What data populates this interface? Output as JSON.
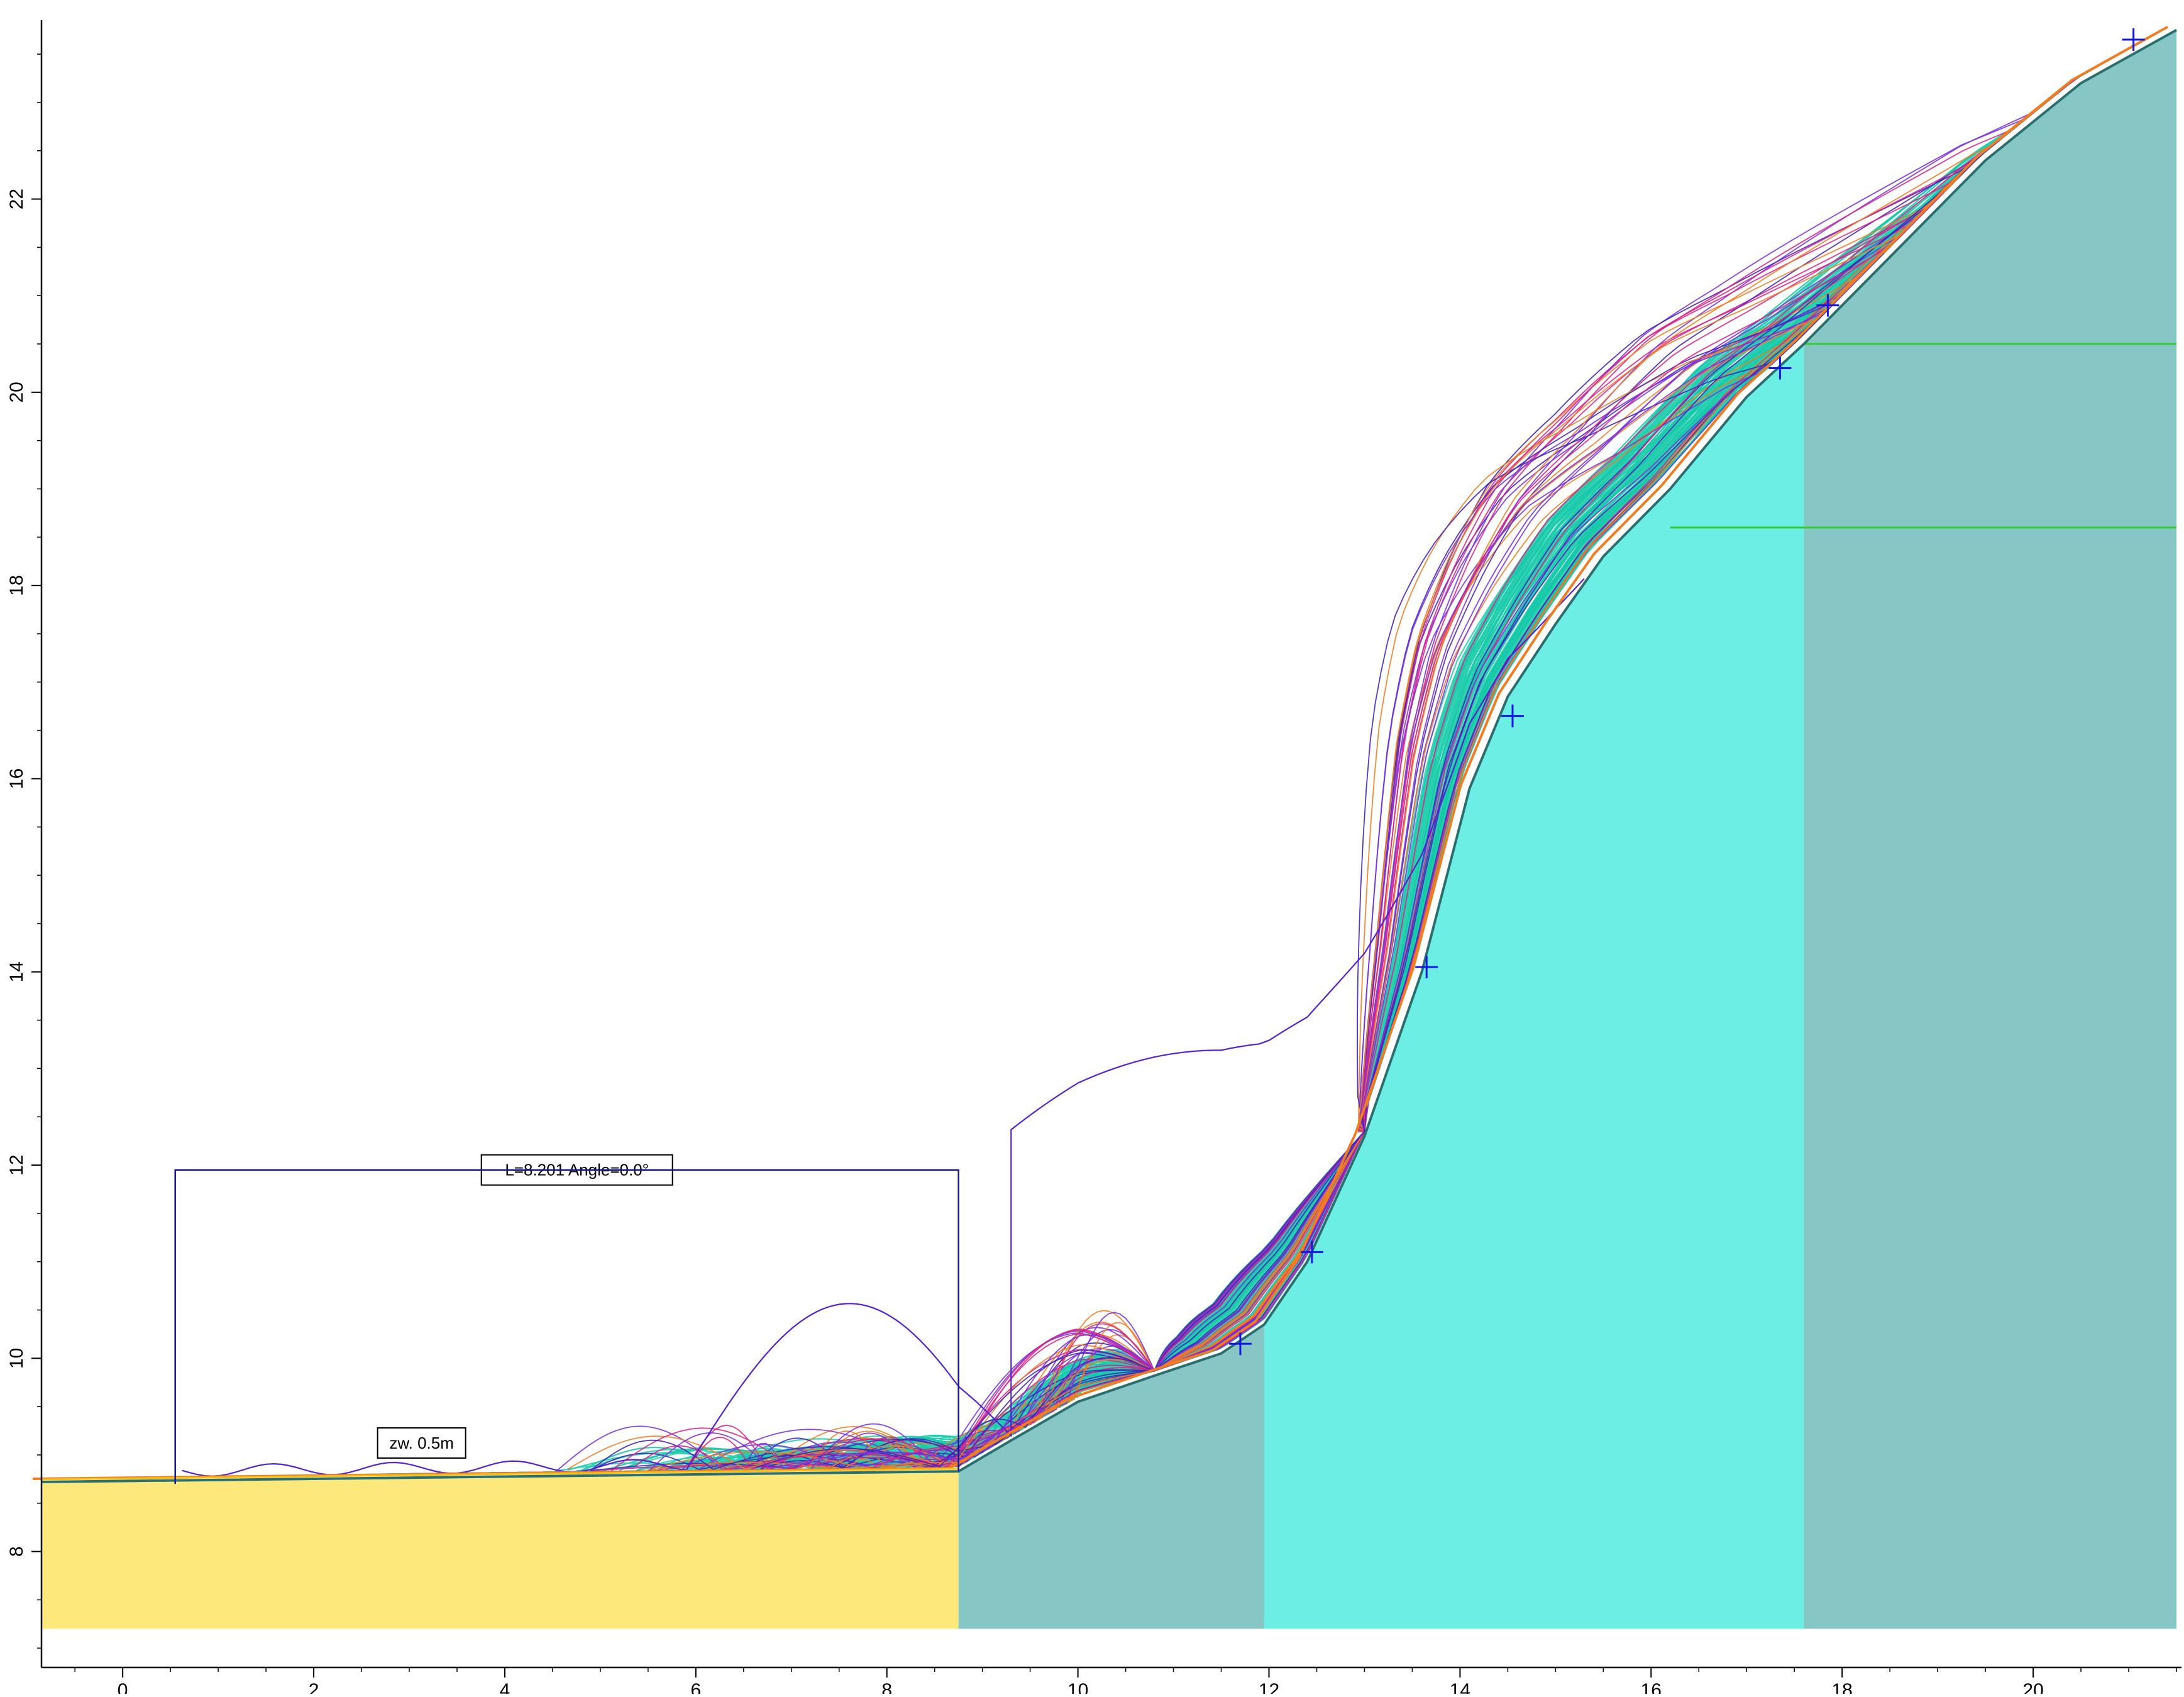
{
  "chart_data": {
    "type": "area",
    "title": "",
    "xlabel": "",
    "ylabel": "",
    "xlim": [
      -0.85,
      21.5
    ],
    "ylim": [
      6.8,
      23.8
    ],
    "x_ticks": [
      "0",
      "2",
      "4",
      "6",
      "8",
      "10",
      "12",
      "14",
      "16",
      "18",
      "20"
    ],
    "y_ticks": [
      "8",
      "10",
      "12",
      "14",
      "16",
      "18",
      "20",
      "22"
    ],
    "regions": [
      {
        "name": "",
        "color": "#fde97b",
        "x_range": [
          -0.85,
          8.75
        ],
        "y_bottom": 7.2
      },
      {
        "name": "",
        "color": "#86c6c4",
        "x_range": [
          8.75,
          11.95
        ],
        "y_bottom": 7.2
      },
      {
        "name": "",
        "color": "#6ceee5",
        "x_range": [
          11.95,
          17.6
        ],
        "y_bottom": 7.2
      },
      {
        "name": "",
        "color": "#86c6c4",
        "x_range": [
          17.6,
          21.5
        ],
        "y_bottom": 7.2
      }
    ],
    "slope_profile": [
      [
        -0.85,
        8.72
      ],
      [
        8.75,
        8.83
      ],
      [
        9.3,
        9.15
      ],
      [
        10.0,
        9.55
      ],
      [
        10.8,
        9.82
      ],
      [
        11.5,
        10.05
      ],
      [
        11.95,
        10.35
      ],
      [
        12.4,
        11.0
      ],
      [
        13.0,
        12.3
      ],
      [
        13.6,
        14.0
      ],
      [
        14.1,
        15.9
      ],
      [
        14.5,
        16.85
      ],
      [
        15.0,
        17.6
      ],
      [
        15.5,
        18.3
      ],
      [
        16.2,
        19.0
      ],
      [
        17.0,
        19.95
      ],
      [
        17.6,
        20.5
      ],
      [
        18.5,
        21.4
      ],
      [
        19.5,
        22.4
      ],
      [
        20.5,
        23.2
      ],
      [
        21.5,
        23.75
      ]
    ],
    "water_table": [
      {
        "y": 20.5,
        "x_range": [
          17.6,
          21.5
        ],
        "color": "#33cc33"
      },
      {
        "y": 18.6,
        "x_range": [
          16.2,
          21.5
        ],
        "color": "#33cc33"
      }
    ],
    "markers": [
      [
        11.7,
        10.15
      ],
      [
        12.45,
        11.1
      ],
      [
        13.65,
        14.05
      ],
      [
        14.55,
        16.65
      ],
      [
        17.35,
        20.25
      ],
      [
        17.85,
        20.9
      ],
      [
        21.05,
        23.65
      ]
    ],
    "markers_color": "#1515e6",
    "trajectory_colors": [
      "#15c8a8",
      "#2ad0b0",
      "#ef7d22",
      "#dd2288",
      "#7a33dd",
      "#4422bb"
    ],
    "dimension": {
      "label": "L=8.201  Angle=0.0°",
      "x_start": 0.55,
      "x_end": 8.75,
      "y_top": 11.95,
      "color": "#1a1a90"
    },
    "annotations": [
      {
        "text": "zw. 0.5m",
        "x": 2.55,
        "y": 11.2
      }
    ]
  }
}
